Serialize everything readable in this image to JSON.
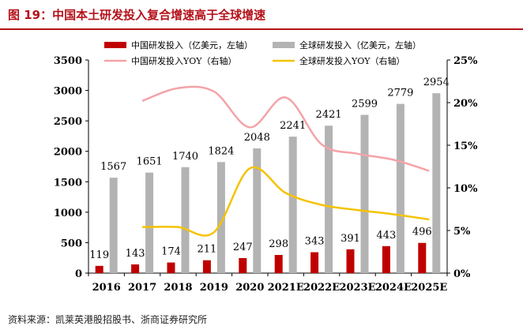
{
  "figure_title": "图 19：中国本土研发投入复合增速高于全球增速",
  "source_note": "资料来源：凯莱英港股招股书、浙商证券研究所",
  "colors": {
    "accent": "#b5121b",
    "china_bar": "#c00000",
    "global_bar": "#b3b3b3",
    "china_yoy_line": "#f4a3a8",
    "global_yoy_line": "#f5c200"
  },
  "chart_data": {
    "type": "bar",
    "categories": [
      "2016",
      "2017",
      "2018",
      "2019",
      "2020",
      "2021E",
      "2022E",
      "2023E",
      "2024E",
      "2025E"
    ],
    "ylim": [
      0,
      3500
    ],
    "yticks": [
      "0",
      "500",
      "1000",
      "1500",
      "2000",
      "2500",
      "3000",
      "3500"
    ],
    "y2lim": [
      0,
      25
    ],
    "y2ticks": [
      "0%",
      "5%",
      "10%",
      "15%",
      "20%",
      "25%"
    ],
    "grid": false,
    "legend_position": "top",
    "series": [
      {
        "name": "中国研发投入（亿美元，左轴）",
        "type": "bar",
        "axis": "left",
        "values": [
          119,
          143,
          174,
          211,
          247,
          298,
          343,
          391,
          443,
          496
        ]
      },
      {
        "name": "全球研发投入（亿美元，左轴）",
        "type": "bar",
        "axis": "left",
        "values": [
          1567,
          1651,
          1740,
          1824,
          2048,
          2241,
          2421,
          2599,
          2779,
          2954
        ]
      },
      {
        "name": "中国研发投入YOY（右轴）",
        "type": "line",
        "axis": "right",
        "values": [
          null,
          20.2,
          21.7,
          21.3,
          17.1,
          20.6,
          15.1,
          14.0,
          13.3,
          12.0
        ]
      },
      {
        "name": "全球研发投入YOY（右轴）",
        "type": "line",
        "axis": "right",
        "values": [
          null,
          5.4,
          5.4,
          4.8,
          12.3,
          9.4,
          8.0,
          7.4,
          6.9,
          6.3
        ]
      }
    ]
  }
}
